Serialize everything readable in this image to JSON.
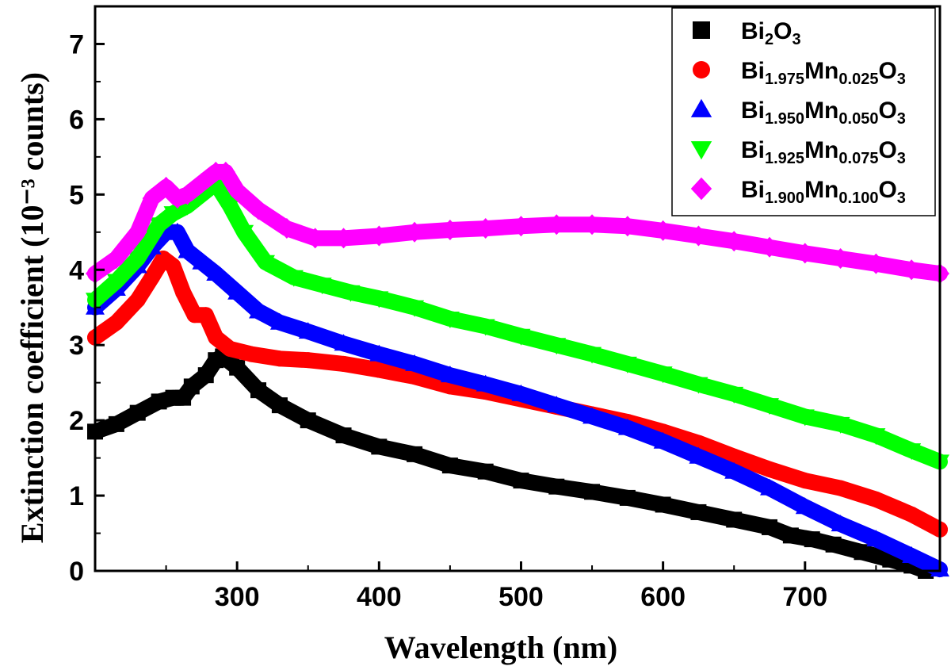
{
  "chart_data": {
    "type": "scatter",
    "title": "",
    "xlabel": "Wavelength (nm)",
    "ylabel": "Extinction coefficient (10⁻³ counts)",
    "xlim": [
      200,
      795
    ],
    "ylim": [
      0,
      7.5
    ],
    "xticks": [
      300,
      400,
      500,
      600,
      700
    ],
    "yticks": [
      0,
      1,
      2,
      3,
      4,
      5,
      6,
      7
    ],
    "legend_position": "top-right",
    "series": [
      {
        "name": "Bi2O3",
        "label_parts": [
          {
            "t": "Bi",
            "sub": false
          },
          {
            "t": "2",
            "sub": true
          },
          {
            "t": "O",
            "sub": false
          },
          {
            "t": "3",
            "sub": true
          }
        ],
        "marker": "square",
        "color": "#000000",
        "points": [
          [
            200,
            1.85
          ],
          [
            215,
            1.95
          ],
          [
            230,
            2.1
          ],
          [
            245,
            2.25
          ],
          [
            255,
            2.3
          ],
          [
            262,
            2.3
          ],
          [
            268,
            2.45
          ],
          [
            278,
            2.6
          ],
          [
            285,
            2.8
          ],
          [
            290,
            2.85
          ],
          [
            300,
            2.7
          ],
          [
            315,
            2.4
          ],
          [
            330,
            2.2
          ],
          [
            350,
            2.0
          ],
          [
            375,
            1.8
          ],
          [
            400,
            1.65
          ],
          [
            425,
            1.55
          ],
          [
            450,
            1.4
          ],
          [
            475,
            1.32
          ],
          [
            500,
            1.2
          ],
          [
            525,
            1.12
          ],
          [
            550,
            1.05
          ],
          [
            575,
            0.97
          ],
          [
            600,
            0.88
          ],
          [
            625,
            0.78
          ],
          [
            650,
            0.68
          ],
          [
            675,
            0.58
          ],
          [
            690,
            0.47
          ],
          [
            705,
            0.42
          ],
          [
            720,
            0.35
          ],
          [
            740,
            0.25
          ],
          [
            760,
            0.15
          ],
          [
            775,
            0.07
          ],
          [
            785,
            0.0
          ]
        ]
      },
      {
        "name": "Bi1.975Mn0.025O3",
        "label_parts": [
          {
            "t": "Bi",
            "sub": false
          },
          {
            "t": "1.975",
            "sub": true
          },
          {
            "t": "Mn",
            "sub": false
          },
          {
            "t": "0.025",
            "sub": true
          },
          {
            "t": "O",
            "sub": false
          },
          {
            "t": "3",
            "sub": true
          }
        ],
        "marker": "circle",
        "color": "#ff0000",
        "points": [
          [
            200,
            3.1
          ],
          [
            215,
            3.3
          ],
          [
            230,
            3.6
          ],
          [
            240,
            3.9
          ],
          [
            248,
            4.15
          ],
          [
            255,
            4.05
          ],
          [
            262,
            3.7
          ],
          [
            270,
            3.4
          ],
          [
            278,
            3.4
          ],
          [
            285,
            3.1
          ],
          [
            295,
            2.95
          ],
          [
            310,
            2.88
          ],
          [
            330,
            2.82
          ],
          [
            350,
            2.8
          ],
          [
            375,
            2.75
          ],
          [
            400,
            2.67
          ],
          [
            425,
            2.58
          ],
          [
            450,
            2.45
          ],
          [
            475,
            2.38
          ],
          [
            500,
            2.28
          ],
          [
            525,
            2.18
          ],
          [
            550,
            2.08
          ],
          [
            575,
            1.98
          ],
          [
            600,
            1.85
          ],
          [
            625,
            1.7
          ],
          [
            650,
            1.52
          ],
          [
            675,
            1.35
          ],
          [
            700,
            1.2
          ],
          [
            725,
            1.1
          ],
          [
            750,
            0.95
          ],
          [
            775,
            0.75
          ],
          [
            795,
            0.55
          ]
        ]
      },
      {
        "name": "Bi1.950Mn0.050O3",
        "label_parts": [
          {
            "t": "Bi",
            "sub": false
          },
          {
            "t": "1.950",
            "sub": true
          },
          {
            "t": "Mn",
            "sub": false
          },
          {
            "t": "0.050",
            "sub": true
          },
          {
            "t": "O",
            "sub": false
          },
          {
            "t": "3",
            "sub": true
          }
        ],
        "marker": "triangle-up",
        "color": "#0000ff",
        "points": [
          [
            200,
            3.5
          ],
          [
            215,
            3.75
          ],
          [
            230,
            4.05
          ],
          [
            240,
            4.3
          ],
          [
            250,
            4.5
          ],
          [
            258,
            4.5
          ],
          [
            265,
            4.25
          ],
          [
            275,
            4.1
          ],
          [
            285,
            3.95
          ],
          [
            300,
            3.7
          ],
          [
            315,
            3.45
          ],
          [
            330,
            3.3
          ],
          [
            350,
            3.18
          ],
          [
            375,
            3.02
          ],
          [
            400,
            2.88
          ],
          [
            425,
            2.75
          ],
          [
            450,
            2.6
          ],
          [
            475,
            2.48
          ],
          [
            500,
            2.35
          ],
          [
            525,
            2.2
          ],
          [
            550,
            2.05
          ],
          [
            575,
            1.9
          ],
          [
            600,
            1.72
          ],
          [
            625,
            1.52
          ],
          [
            650,
            1.32
          ],
          [
            675,
            1.1
          ],
          [
            700,
            0.85
          ],
          [
            725,
            0.62
          ],
          [
            750,
            0.42
          ],
          [
            775,
            0.2
          ],
          [
            795,
            0.02
          ]
        ]
      },
      {
        "name": "Bi1.925Mn0.075O3",
        "label_parts": [
          {
            "t": "Bi",
            "sub": false
          },
          {
            "t": "1.925",
            "sub": true
          },
          {
            "t": "Mn",
            "sub": false
          },
          {
            "t": "0.075",
            "sub": true
          },
          {
            "t": "O",
            "sub": false
          },
          {
            "t": "3",
            "sub": true
          }
        ],
        "marker": "triangle-down",
        "color": "#00ff00",
        "points": [
          [
            200,
            3.6
          ],
          [
            215,
            3.85
          ],
          [
            230,
            4.15
          ],
          [
            245,
            4.6
          ],
          [
            255,
            4.75
          ],
          [
            265,
            4.85
          ],
          [
            275,
            5.0
          ],
          [
            285,
            5.15
          ],
          [
            295,
            4.85
          ],
          [
            305,
            4.5
          ],
          [
            320,
            4.1
          ],
          [
            340,
            3.9
          ],
          [
            360,
            3.8
          ],
          [
            380,
            3.7
          ],
          [
            400,
            3.62
          ],
          [
            425,
            3.5
          ],
          [
            450,
            3.35
          ],
          [
            475,
            3.25
          ],
          [
            500,
            3.12
          ],
          [
            525,
            3.0
          ],
          [
            550,
            2.88
          ],
          [
            575,
            2.75
          ],
          [
            600,
            2.62
          ],
          [
            625,
            2.48
          ],
          [
            650,
            2.35
          ],
          [
            675,
            2.2
          ],
          [
            700,
            2.05
          ],
          [
            725,
            1.95
          ],
          [
            750,
            1.8
          ],
          [
            775,
            1.6
          ],
          [
            795,
            1.45
          ]
        ]
      },
      {
        "name": "Bi1.900Mn0.100O3",
        "label_parts": [
          {
            "t": "Bi",
            "sub": false
          },
          {
            "t": "1.900",
            "sub": true
          },
          {
            "t": "Mn",
            "sub": false
          },
          {
            "t": "0.100",
            "sub": true
          },
          {
            "t": "O",
            "sub": false
          },
          {
            "t": "3",
            "sub": true
          }
        ],
        "marker": "diamond",
        "color": "#ff00ff",
        "points": [
          [
            200,
            3.95
          ],
          [
            215,
            4.15
          ],
          [
            230,
            4.5
          ],
          [
            240,
            4.95
          ],
          [
            250,
            5.1
          ],
          [
            258,
            4.95
          ],
          [
            265,
            5.0
          ],
          [
            275,
            5.15
          ],
          [
            285,
            5.3
          ],
          [
            292,
            5.3
          ],
          [
            300,
            5.05
          ],
          [
            315,
            4.8
          ],
          [
            335,
            4.55
          ],
          [
            355,
            4.42
          ],
          [
            375,
            4.42
          ],
          [
            400,
            4.45
          ],
          [
            425,
            4.5
          ],
          [
            450,
            4.53
          ],
          [
            475,
            4.55
          ],
          [
            500,
            4.58
          ],
          [
            525,
            4.6
          ],
          [
            550,
            4.6
          ],
          [
            575,
            4.58
          ],
          [
            600,
            4.52
          ],
          [
            625,
            4.45
          ],
          [
            650,
            4.38
          ],
          [
            675,
            4.3
          ],
          [
            700,
            4.22
          ],
          [
            725,
            4.15
          ],
          [
            750,
            4.08
          ],
          [
            775,
            4.0
          ],
          [
            795,
            3.95
          ]
        ]
      }
    ]
  }
}
